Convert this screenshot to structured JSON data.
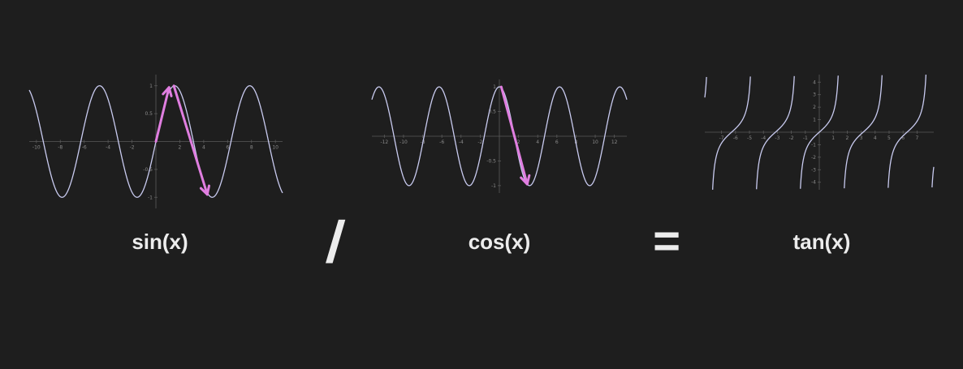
{
  "colors": {
    "background": "#1e1e1e",
    "axis": "#5a5a5a",
    "curve": "#c9cbf0",
    "arrow": "#e07ee0",
    "text": "#ececec"
  },
  "operators": {
    "divide": "/",
    "equals": "="
  },
  "chart_data": [
    {
      "type": "line",
      "label": "sin(x)",
      "function": "sin",
      "xlim": [
        -10.6,
        10.6
      ],
      "ylim": [
        -1.2,
        1.2
      ],
      "x_ticks": [
        "-10",
        "-8",
        "-6",
        "-4",
        "-2",
        "2",
        "4",
        "6",
        "8",
        "10"
      ],
      "y_ticks": [
        "1",
        "0.5",
        "-0.5",
        "-1"
      ],
      "annotation_arrows": [
        {
          "from": [
            0,
            0
          ],
          "to": [
            1.1,
            0.97
          ]
        },
        {
          "from": [
            1.5,
            1.0
          ],
          "to": [
            4.3,
            -0.95
          ]
        }
      ]
    },
    {
      "type": "line",
      "label": "cos(x)",
      "function": "cos",
      "xlim": [
        -13.3,
        13.3
      ],
      "ylim": [
        -1.15,
        1.15
      ],
      "x_ticks": [
        "-12",
        "-10",
        "-8",
        "-6",
        "-4",
        "-2",
        "2",
        "4",
        "6",
        "8",
        "10",
        "12"
      ],
      "y_ticks": [
        "1",
        "0.5",
        "-0.5",
        "-1"
      ],
      "annotation_arrows": [
        {
          "from": [
            0.2,
            1.0
          ],
          "to": [
            2.9,
            -0.97
          ]
        }
      ]
    },
    {
      "type": "line",
      "label": "tan(x)",
      "function": "tan",
      "xlim": [
        -8.2,
        8.2
      ],
      "ylim": [
        -4.6,
        4.6
      ],
      "x_ticks": [
        "-7",
        "-6",
        "-5",
        "-4",
        "-3",
        "-2",
        "-1",
        "1",
        "2",
        "3",
        "4",
        "5",
        "6",
        "7"
      ],
      "y_ticks": [
        "4",
        "3",
        "2",
        "1",
        "-1",
        "-2",
        "-3",
        "-4"
      ],
      "annotation_arrows": []
    }
  ]
}
